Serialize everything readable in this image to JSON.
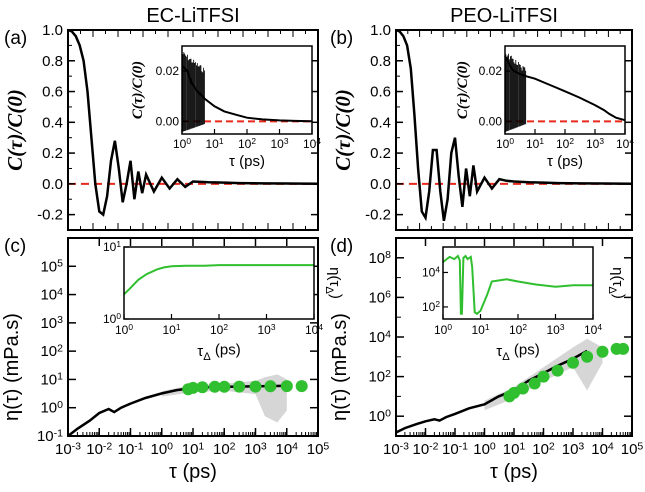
{
  "colors": {
    "curve": "#000000",
    "zero_line": "#e8291c",
    "inset_viscosity": "#2fbf2f",
    "markers": "#2fbf2f",
    "band": "#d6d6d6"
  },
  "chart_data": [
    {
      "id": "a",
      "panel_label": "(a)",
      "title": "EC-LiTFSI",
      "type": "line",
      "xlim": [
        0,
        3.2
      ],
      "ylim": [
        -0.3,
        1.0
      ],
      "x_scale": "linear (no tick labels)",
      "yticks": [
        "1.0",
        "0.8",
        "0.6",
        "0.4",
        "0.2",
        "0.0",
        "-0.2"
      ],
      "ytick_values": [
        1.0,
        0.8,
        0.6,
        0.4,
        0.2,
        0.0,
        -0.2
      ],
      "ylabel": "C(τ)/C(0)",
      "series": [
        {
          "style": "solid",
          "color": "#000000",
          "x": [
            0,
            0.05,
            0.1,
            0.15,
            0.2,
            0.25,
            0.3,
            0.35,
            0.4,
            0.45,
            0.5,
            0.55,
            0.6,
            0.65,
            0.7,
            0.75,
            0.8,
            0.85,
            0.9,
            0.95,
            1.0,
            1.1,
            1.2,
            1.3,
            1.4,
            1.5,
            1.6,
            1.8,
            2.0,
            2.2,
            2.5,
            2.8,
            3.2
          ],
          "y": [
            1.0,
            0.99,
            0.96,
            0.9,
            0.8,
            0.6,
            0.3,
            0.0,
            -0.18,
            -0.2,
            -0.08,
            0.15,
            0.28,
            0.1,
            -0.12,
            0.0,
            0.15,
            -0.1,
            0.08,
            -0.06,
            0.06,
            -0.05,
            0.04,
            -0.03,
            0.03,
            -0.02,
            0.015,
            0.01,
            0.008,
            0.005,
            0.003,
            0.002,
            0.001
          ]
        }
      ],
      "reference_line": {
        "y": 0.0,
        "style": "dashed",
        "color": "#e8291c"
      },
      "inset": {
        "x_scale": "log",
        "xlim": [
          1,
          10000
        ],
        "xticks": [
          "10^0",
          "10^1",
          "10^2",
          "10^3",
          "10^4"
        ],
        "ylim": [
          -0.005,
          0.03
        ],
        "yticks": [
          "0.02",
          "0.00"
        ],
        "ytick_values": [
          0.02,
          0.0
        ],
        "xlabel": "τ (ps)",
        "ylabel": "C(τ)/C(0)",
        "series": {
          "x": [
            1,
            1.5,
            2,
            3,
            5,
            10,
            20,
            50,
            100,
            300,
            1000,
            3000,
            10000
          ],
          "y": [
            0.022,
            0.02,
            0.015,
            0.012,
            0.009,
            0.006,
            0.004,
            0.0025,
            0.0015,
            0.0008,
            0.0004,
            0.0002,
            0.0001
          ]
        },
        "noise_region": [
          1,
          5
        ],
        "reference_line": {
          "y": 0.0,
          "style": "dashed"
        }
      }
    },
    {
      "id": "b",
      "panel_label": "(b)",
      "title": "PEO-LiTFSI",
      "type": "line",
      "xlim": [
        0,
        3.2
      ],
      "ylim": [
        -0.3,
        1.0
      ],
      "x_scale": "linear (no tick labels)",
      "yticks": [
        "1.0",
        "0.8",
        "0.6",
        "0.4",
        "0.2",
        "0.0",
        "-0.2"
      ],
      "ytick_values": [
        1.0,
        0.8,
        0.6,
        0.4,
        0.2,
        0.0,
        -0.2
      ],
      "ylabel": "C(τ)/C(0)",
      "series": [
        {
          "style": "solid",
          "color": "#000000",
          "x": [
            0,
            0.05,
            0.1,
            0.15,
            0.2,
            0.25,
            0.3,
            0.35,
            0.4,
            0.45,
            0.5,
            0.55,
            0.6,
            0.65,
            0.7,
            0.75,
            0.8,
            0.85,
            0.9,
            0.95,
            1.0,
            1.05,
            1.1,
            1.2,
            1.3,
            1.4,
            1.5,
            1.6,
            1.8,
            2.0,
            2.2,
            2.5,
            2.8,
            3.2
          ],
          "y": [
            1.0,
            0.99,
            0.96,
            0.9,
            0.75,
            0.45,
            0.1,
            -0.18,
            -0.22,
            -0.05,
            0.22,
            0.22,
            -0.05,
            -0.24,
            -0.1,
            0.2,
            0.3,
            0.05,
            -0.15,
            0.1,
            -0.08,
            0.12,
            -0.05,
            0.04,
            -0.03,
            0.03,
            0.02,
            0.015,
            0.01,
            0.008,
            0.005,
            0.003,
            0.002,
            0.001
          ]
        }
      ],
      "reference_line": {
        "y": 0.0,
        "style": "dashed",
        "color": "#e8291c"
      },
      "inset": {
        "x_scale": "log",
        "xlim": [
          1,
          10000
        ],
        "xticks": [
          "10^0",
          "10^1",
          "10^2",
          "10^3",
          "10^4"
        ],
        "ylim": [
          -0.005,
          0.03
        ],
        "yticks": [
          "0.02",
          "0.00"
        ],
        "ytick_values": [
          0.02,
          0.0
        ],
        "xlabel": "τ (ps)",
        "ylabel": "C(τ)/C(0)",
        "series": {
          "x": [
            1,
            1.5,
            2,
            3,
            5,
            10,
            20,
            50,
            100,
            300,
            1000,
            2000,
            3000,
            5000,
            10000
          ],
          "y": [
            0.026,
            0.022,
            0.02,
            0.019,
            0.018,
            0.017,
            0.0155,
            0.0135,
            0.012,
            0.0095,
            0.0065,
            0.0045,
            0.003,
            0.0015,
            0.0005
          ]
        },
        "noise_region": [
          1,
          5
        ],
        "reference_line": {
          "y": 0.0,
          "style": "dashed"
        }
      }
    },
    {
      "id": "c",
      "panel_label": "(c)",
      "type": "line+scatter",
      "x_scale": "log",
      "y_scale": "log",
      "xlim": [
        0.001,
        100000
      ],
      "ylim": [
        0.1,
        1000000
      ],
      "xticks": [
        "10^-3",
        "10^-2",
        "10^-1",
        "10^0",
        "10^1",
        "10^2",
        "10^3",
        "10^4",
        "10^5"
      ],
      "yticks": [
        "10^-1",
        "10^0",
        "10^1",
        "10^2",
        "10^3",
        "10^4",
        "10^5"
      ],
      "xlabel": "τ (ps)",
      "ylabel": "η(τ) (mPa.s)",
      "series": [
        {
          "style": "solid",
          "color": "#000000",
          "x": [
            0.001,
            0.002,
            0.005,
            0.01,
            0.02,
            0.03,
            0.05,
            0.1,
            0.3,
            1,
            3,
            10,
            30,
            100,
            300,
            1000,
            3000,
            10000
          ],
          "y": [
            0.1,
            0.18,
            0.35,
            0.65,
            0.9,
            0.7,
            1.0,
            1.4,
            2.2,
            3.2,
            4.2,
            5.0,
            5.3,
            5.5,
            5.6,
            5.7,
            5.8,
            6.0
          ]
        },
        {
          "style": "markers",
          "color": "#2fbf2f",
          "x": [
            7,
            10,
            20,
            50,
            100,
            300,
            1000,
            3000,
            10000,
            30000
          ],
          "y": [
            4.5,
            5.0,
            5.3,
            5.5,
            5.5,
            5.6,
            5.6,
            5.7,
            5.8,
            5.8
          ]
        }
      ],
      "band": {
        "x": [
          1,
          10,
          100,
          1000,
          2000,
          5000,
          10000
        ],
        "low": [
          2.5,
          3.5,
          4.0,
          3.0,
          0.5,
          0.3,
          0.8
        ],
        "high": [
          3.8,
          6.5,
          7.0,
          9.0,
          12,
          15,
          10
        ]
      },
      "inset": {
        "x_scale": "log",
        "y_scale": "log",
        "xlim": [
          1,
          10000
        ],
        "ylim": [
          1,
          10
        ],
        "xticks": [
          "10^0",
          "10^1",
          "10^2",
          "10^3",
          "10^4"
        ],
        "yticks": [
          "10^0",
          "10^1"
        ],
        "xlabel": "τ_Δ (ps)",
        "ylabel": "η(τ_Δ)",
        "series": {
          "x": [
            1,
            1.3,
            1.6,
            2,
            3,
            5,
            7,
            10,
            20,
            50,
            100,
            1000,
            10000
          ],
          "y": [
            2.2,
            2.6,
            3.0,
            3.5,
            4.2,
            4.9,
            5.2,
            5.4,
            5.5,
            5.5,
            5.6,
            5.6,
            5.6
          ]
        }
      }
    },
    {
      "id": "d",
      "panel_label": "(d)",
      "type": "line+scatter",
      "x_scale": "log",
      "y_scale": "log",
      "xlim": [
        0.001,
        100000
      ],
      "ylim": [
        0.1,
        1000000000
      ],
      "xticks": [
        "10^-3",
        "10^-2",
        "10^-1",
        "10^0",
        "10^1",
        "10^2",
        "10^3",
        "10^4",
        "10^5"
      ],
      "yticks": [
        "10^0",
        "10^2",
        "10^4",
        "10^6",
        "10^8"
      ],
      "xlabel": "τ (ps)",
      "ylabel": "η(τ) (mPa.s)",
      "series": [
        {
          "style": "solid",
          "color": "#000000",
          "x": [
            0.001,
            0.002,
            0.005,
            0.01,
            0.02,
            0.03,
            0.05,
            0.1,
            0.3,
            1,
            3,
            10,
            30,
            100,
            300,
            1000,
            3000
          ],
          "y": [
            0.15,
            0.25,
            0.4,
            0.55,
            0.7,
            0.6,
            0.9,
            1.3,
            2.5,
            4,
            10,
            20,
            60,
            150,
            350,
            800,
            2000
          ]
        },
        {
          "style": "markers",
          "color": "#2fbf2f",
          "x": [
            7,
            10,
            20,
            50,
            100,
            300,
            1000,
            3000,
            10000,
            30000,
            50000
          ],
          "y": [
            10,
            15,
            25,
            45,
            100,
            200,
            500,
            1000,
            1800,
            2500,
            2500
          ]
        }
      ],
      "band": {
        "x": [
          1,
          10,
          100,
          1000,
          3000,
          10000
        ],
        "low": [
          2,
          8,
          60,
          300,
          20,
          500
        ],
        "high": [
          6,
          30,
          300,
          3000,
          8000,
          3000
        ]
      },
      "inset": {
        "x_scale": "log",
        "y_scale": "log",
        "xlim": [
          1,
          10000
        ],
        "ylim": [
          20,
          300000
        ],
        "xticks": [
          "10^0",
          "10^1",
          "10^2",
          "10^3",
          "10^4"
        ],
        "yticks": [
          "10^2",
          "10^4"
        ],
        "xlabel": "τ_Δ (ps)",
        "ylabel": "η(τ_Δ)",
        "series": {
          "x": [
            1,
            1.5,
            2,
            2.5,
            2.8,
            3.0,
            3.2,
            3.5,
            4.0,
            4.5,
            5.0,
            5.5,
            6,
            7,
            8,
            10,
            15,
            20,
            50,
            100,
            300,
            1000,
            3000,
            10000
          ],
          "y": [
            40000,
            80000,
            60000,
            90000,
            50000,
            40,
            40,
            70000,
            90000,
            60000,
            70000,
            80000,
            20000,
            50,
            40,
            60,
            500,
            3000,
            4000,
            3000,
            2000,
            1500,
            1800,
            1800
          ]
        }
      }
    }
  ]
}
